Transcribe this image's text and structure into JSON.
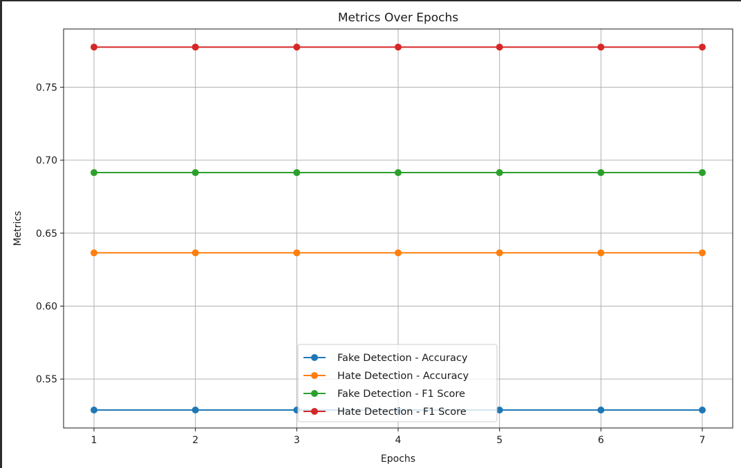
{
  "chart_data": {
    "type": "line",
    "title": "Metrics Over Epochs",
    "xlabel": "Epochs",
    "ylabel": "Metrics",
    "x": [
      1,
      2,
      3,
      4,
      5,
      6,
      7
    ],
    "xticks": [
      "1",
      "2",
      "3",
      "4",
      "5",
      "6",
      "7"
    ],
    "yticks": [
      "0.55",
      "0.60",
      "0.65",
      "0.70",
      "0.75"
    ],
    "ytick_values": [
      0.55,
      0.6,
      0.65,
      0.7,
      0.75
    ],
    "xlim": [
      0.7,
      7.3
    ],
    "ylim": [
      0.5165,
      0.7899
    ],
    "grid": true,
    "legend_position": "lower-center",
    "series": [
      {
        "name": "Fake Detection - Accuracy",
        "color": "#1f77b4",
        "values": [
          0.5288,
          0.5288,
          0.5288,
          0.5288,
          0.5288,
          0.5288,
          0.5288
        ]
      },
      {
        "name": "Hate Detection - Accuracy",
        "color": "#ff7f0e",
        "values": [
          0.6365,
          0.6365,
          0.6365,
          0.6365,
          0.6365,
          0.6365,
          0.6365
        ]
      },
      {
        "name": "Fake Detection - F1 Score",
        "color": "#2ca02c",
        "values": [
          0.6915,
          0.6915,
          0.6915,
          0.6915,
          0.6915,
          0.6915,
          0.6915
        ]
      },
      {
        "name": "Hate Detection - F1 Score",
        "color": "#d62728",
        "values": [
          0.7775,
          0.7775,
          0.7775,
          0.7775,
          0.7775,
          0.7775,
          0.7775
        ]
      }
    ]
  }
}
